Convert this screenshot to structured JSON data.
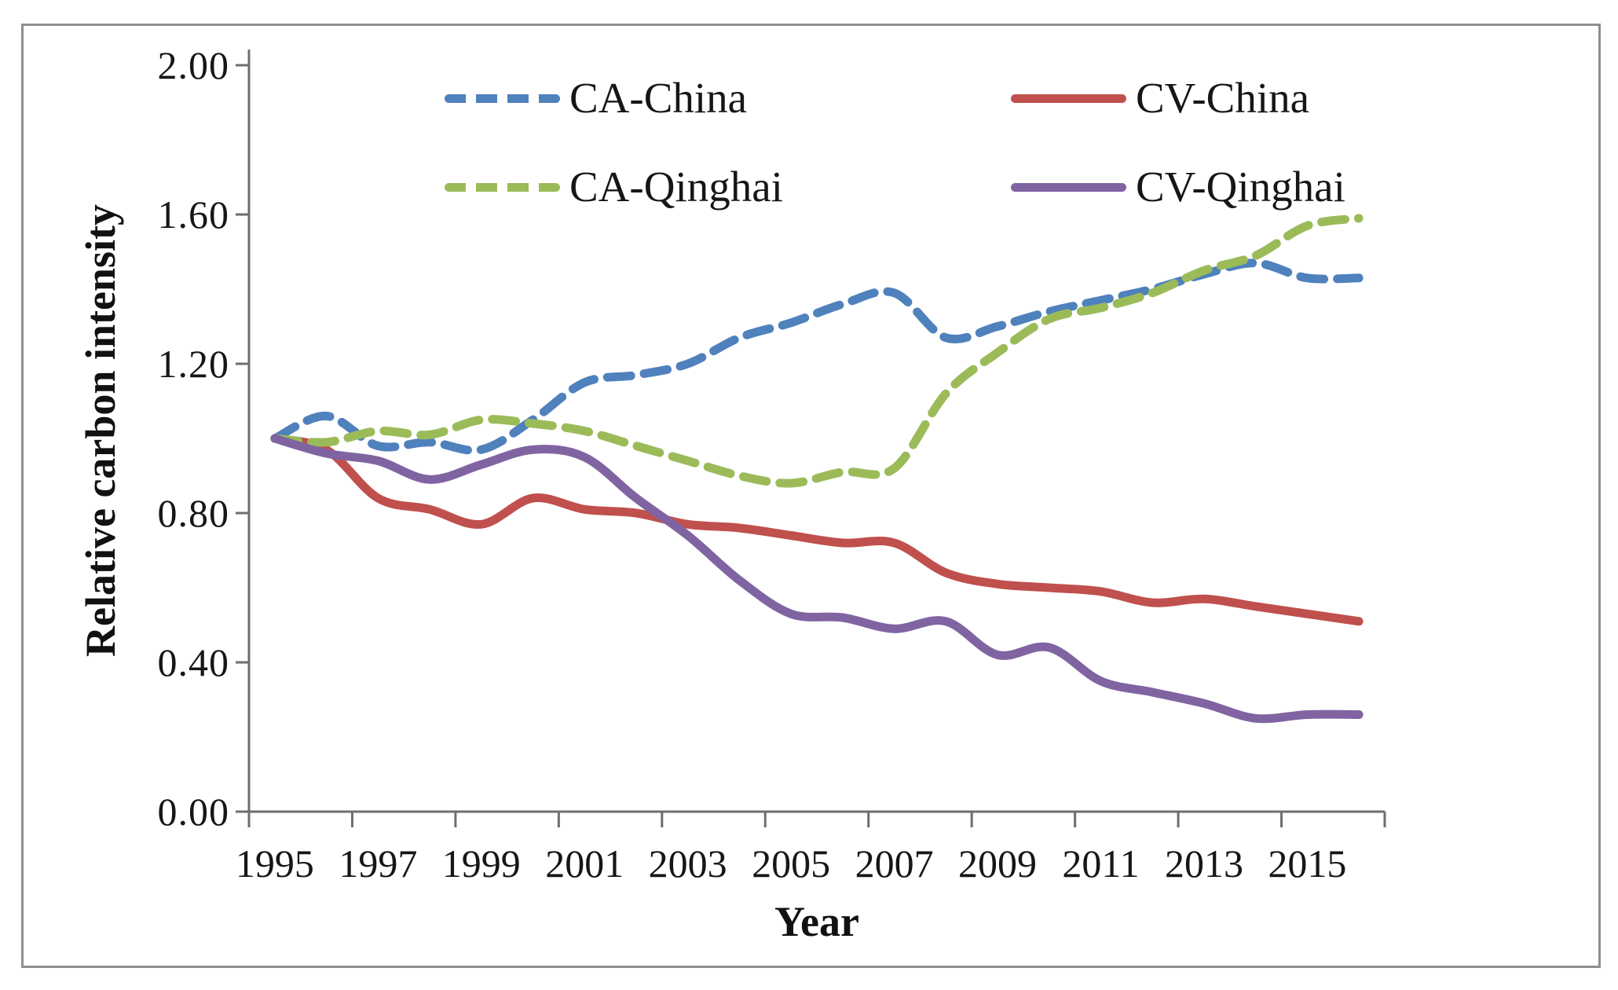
{
  "figure": {
    "border_color": "#8f8f8f",
    "background_color": "#ffffff",
    "axis_line_color": "#6e6e6e",
    "text_color": "#161616"
  },
  "chart_data": {
    "type": "line",
    "title": "",
    "xlabel": "Year",
    "ylabel": "Relative carbon intensity",
    "x": [
      1995,
      1996,
      1997,
      1998,
      1999,
      2000,
      2001,
      2002,
      2003,
      2004,
      2005,
      2006,
      2007,
      2008,
      2009,
      2010,
      2011,
      2012,
      2013,
      2014,
      2015,
      2016
    ],
    "x_tick_labels": [
      "1995",
      "1997",
      "1999",
      "2001",
      "2003",
      "2005",
      "2007",
      "2009",
      "2011",
      "2013",
      "2015"
    ],
    "y_ticks": [
      0.0,
      0.4,
      0.8,
      1.2,
      1.6,
      2.0
    ],
    "y_tick_labels": [
      "0.00",
      "0.40",
      "0.80",
      "1.20",
      "1.60",
      "2.00"
    ],
    "ylim": [
      0.0,
      2.0
    ],
    "grid": false,
    "legend_position": "inside-top-two-columns",
    "smoothed_lines": true,
    "series": [
      {
        "name": "CA-China",
        "color": "#4F81BD",
        "style": "dashed",
        "values": [
          1.0,
          1.06,
          0.98,
          0.99,
          0.97,
          1.05,
          1.15,
          1.17,
          1.2,
          1.27,
          1.31,
          1.36,
          1.39,
          1.27,
          1.3,
          1.34,
          1.37,
          1.4,
          1.44,
          1.47,
          1.43,
          1.43
        ]
      },
      {
        "name": "CV-China",
        "color": "#C0504D",
        "style": "solid",
        "values": [
          1.0,
          0.97,
          0.84,
          0.81,
          0.77,
          0.84,
          0.81,
          0.8,
          0.77,
          0.76,
          0.74,
          0.72,
          0.72,
          0.64,
          0.61,
          0.6,
          0.59,
          0.56,
          0.57,
          0.55,
          0.53,
          0.51
        ]
      },
      {
        "name": "CA-Qinghai",
        "color": "#9BBB59",
        "style": "dashed",
        "values": [
          1.0,
          0.99,
          1.02,
          1.01,
          1.05,
          1.04,
          1.02,
          0.98,
          0.94,
          0.9,
          0.88,
          0.91,
          0.92,
          1.12,
          1.23,
          1.32,
          1.35,
          1.39,
          1.45,
          1.49,
          1.57,
          1.59
        ]
      },
      {
        "name": "CV-Qinghai",
        "color": "#8064A2",
        "style": "solid",
        "values": [
          1.0,
          0.96,
          0.94,
          0.89,
          0.93,
          0.97,
          0.95,
          0.84,
          0.74,
          0.62,
          0.53,
          0.52,
          0.49,
          0.51,
          0.42,
          0.44,
          0.35,
          0.32,
          0.29,
          0.25,
          0.26,
          0.26
        ]
      }
    ],
    "legend_entries": [
      {
        "series_index": 0,
        "column": 0,
        "row": 0
      },
      {
        "series_index": 2,
        "column": 0,
        "row": 1
      },
      {
        "series_index": 1,
        "column": 1,
        "row": 0
      },
      {
        "series_index": 3,
        "column": 1,
        "row": 1
      }
    ]
  }
}
